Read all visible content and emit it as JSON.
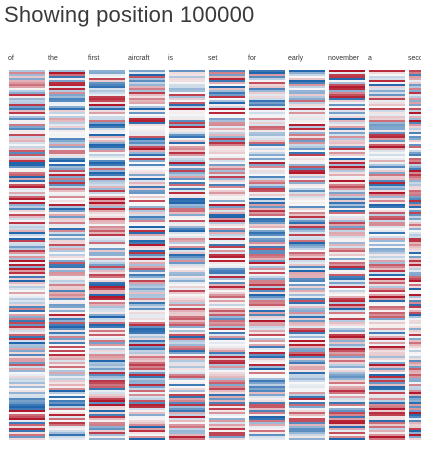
{
  "title": "Showing position 100000",
  "tokens": [
    "of",
    "the",
    "first",
    "aircraft",
    "is",
    "set",
    "for",
    "early",
    "november",
    "a",
    "seco"
  ],
  "colors": {
    "negative": "#b2182b",
    "positive": "#2166ac",
    "neutral": "#f7f7f7",
    "background": "#ffffff",
    "title": "#3a3a3a"
  }
}
